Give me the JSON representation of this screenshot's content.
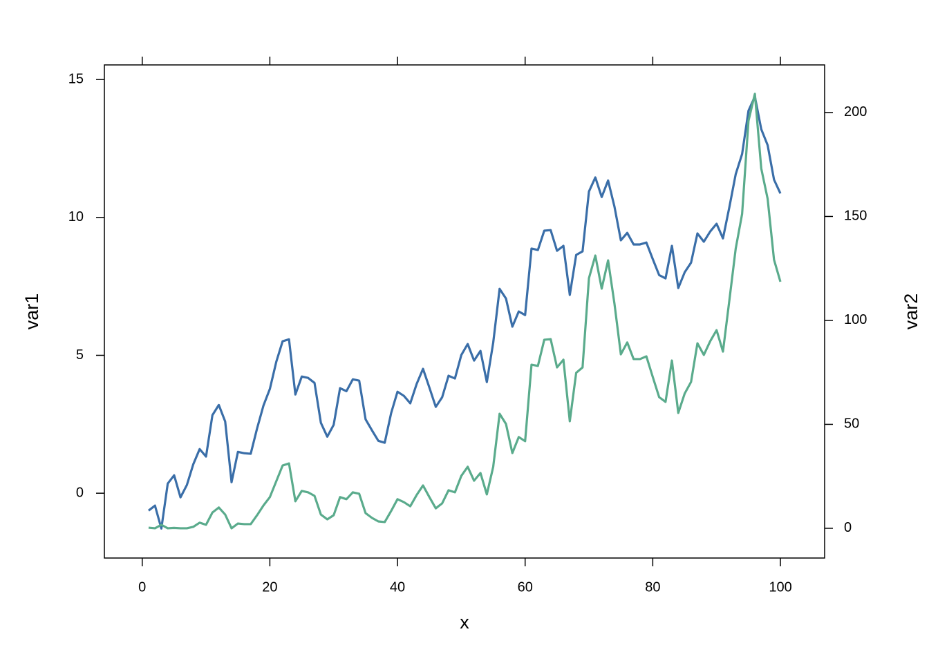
{
  "chart_data": {
    "type": "line",
    "xlabel": "x",
    "ylabel": "var1",
    "y2label": "var2",
    "x": [
      1,
      2,
      3,
      4,
      5,
      6,
      7,
      8,
      9,
      10,
      11,
      12,
      13,
      14,
      15,
      16,
      17,
      18,
      19,
      20,
      21,
      22,
      23,
      24,
      25,
      26,
      27,
      28,
      29,
      30,
      31,
      32,
      33,
      34,
      35,
      36,
      37,
      38,
      39,
      40,
      41,
      42,
      43,
      44,
      45,
      46,
      47,
      48,
      49,
      50,
      51,
      52,
      53,
      54,
      55,
      56,
      57,
      58,
      59,
      60,
      61,
      62,
      63,
      64,
      65,
      66,
      67,
      68,
      69,
      70,
      71,
      72,
      73,
      74,
      75,
      76,
      77,
      78,
      79,
      80,
      81,
      82,
      83,
      84,
      85,
      86,
      87,
      88,
      89,
      90,
      91,
      92,
      93,
      94,
      95,
      96,
      97,
      98,
      99,
      100
    ],
    "series": [
      {
        "name": "var1",
        "color": "#3a6ea8",
        "values": [
          -0.63,
          -0.45,
          -1.28,
          0.35,
          0.65,
          -0.15,
          0.3,
          1.05,
          1.6,
          1.33,
          2.83,
          3.2,
          2.6,
          0.4,
          1.5,
          1.45,
          1.43,
          2.35,
          3.18,
          3.78,
          4.76,
          5.51,
          5.58,
          3.58,
          4.23,
          4.18,
          4.0,
          2.55,
          2.05,
          2.48,
          3.81,
          3.7,
          4.13,
          4.08,
          2.68,
          2.28,
          1.9,
          1.83,
          2.9,
          3.68,
          3.53,
          3.26,
          3.96,
          4.51,
          3.83,
          3.13,
          3.48,
          4.26,
          4.16,
          5.01,
          5.41,
          4.81,
          5.16,
          4.03,
          5.46,
          7.41,
          7.06,
          6.04,
          6.59,
          6.46,
          8.87,
          8.82,
          9.52,
          9.54,
          8.79,
          8.97,
          7.19,
          8.64,
          8.77,
          10.94,
          11.45,
          10.74,
          11.34,
          10.39,
          9.17,
          9.44,
          9.02,
          9.02,
          9.09,
          8.49,
          7.91,
          7.79,
          8.97,
          7.44,
          8.01,
          8.36,
          9.42,
          9.12,
          9.49,
          9.77,
          9.24,
          10.37,
          11.57,
          12.3,
          13.87,
          14.38,
          13.2,
          12.62,
          11.37,
          10.87
        ]
      },
      {
        "name": "var2",
        "color": "#5aab8c",
        "axis": "y2",
        "values": [
          0.3,
          0,
          1.7,
          0,
          0.2,
          0,
          0,
          0.7,
          2.7,
          1.7,
          7.6,
          10,
          6.6,
          0,
          2.3,
          2,
          2,
          6.3,
          11,
          15,
          22.6,
          30.2,
          31.2,
          13,
          18,
          17.3,
          15.6,
          6.6,
          4.3,
          6.3,
          15,
          14,
          17.3,
          16.6,
          7.3,
          5,
          3.3,
          3,
          8.3,
          14,
          12.6,
          10.6,
          16,
          20.6,
          15,
          9.6,
          12,
          18.3,
          17.3,
          25.2,
          29.6,
          22.9,
          26.6,
          16.3,
          29.6,
          55.1,
          50.2,
          36.2,
          43.9,
          41.9,
          78.7,
          78.1,
          90.7,
          91,
          77.4,
          81.1,
          51.5,
          74.8,
          77.4,
          120.3,
          131.2,
          115.3,
          128.9,
          108,
          83.7,
          89.4,
          81.4,
          81.4,
          82.7,
          72.8,
          63.1,
          60.8,
          80.7,
          55.5,
          64.8,
          70.4,
          89,
          83.4,
          90,
          95.3,
          85,
          109.6,
          134.6,
          151.2,
          196,
          209,
          173.1,
          158.5,
          129.2,
          118.6
        ]
      }
    ],
    "xlim": [
      -5.93,
      106.93
    ],
    "xticks": [
      0,
      20,
      40,
      60,
      80,
      100
    ],
    "ylim": [
      -2.35,
      15.53
    ],
    "yticks": [
      0,
      5,
      10,
      15
    ],
    "y2lim": [
      -14.3,
      222.9
    ],
    "y2ticks": [
      0,
      50,
      100,
      150,
      200
    ]
  }
}
